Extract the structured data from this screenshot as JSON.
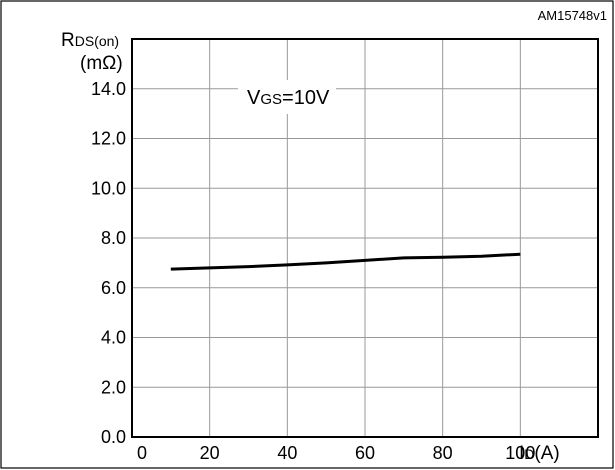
{
  "chart_data": {
    "type": "line",
    "figure_id": "AM15748v1",
    "y_label_main": "R",
    "y_label_sub": "DS(on)",
    "y_unit": "(mΩ)",
    "x_label_main": "I",
    "x_label_sub": "D",
    "x_unit": "(A)",
    "annotation_main": "V",
    "annotation_sub": "GS",
    "annotation_value": "=10V",
    "xlim": [
      0,
      120
    ],
    "ylim": [
      0,
      16
    ],
    "x_ticks": [
      0,
      20,
      40,
      60,
      80,
      100
    ],
    "y_ticks": [
      0.0,
      2.0,
      4.0,
      6.0,
      8.0,
      10.0,
      12.0,
      14.0
    ],
    "x_tick_labels": [
      "0",
      "20",
      "40",
      "60",
      "80",
      "100"
    ],
    "y_tick_labels": [
      "0.0",
      "2.0",
      "4.0",
      "6.0",
      "8.0",
      "10.0",
      "12.0",
      "14.0"
    ],
    "grid": true,
    "series": [
      {
        "x": [
          10,
          20,
          30,
          40,
          50,
          60,
          70,
          80,
          90,
          100
        ],
        "y": [
          6.75,
          6.8,
          6.85,
          6.92,
          7.0,
          7.1,
          7.2,
          7.23,
          7.27,
          7.35
        ]
      }
    ]
  }
}
